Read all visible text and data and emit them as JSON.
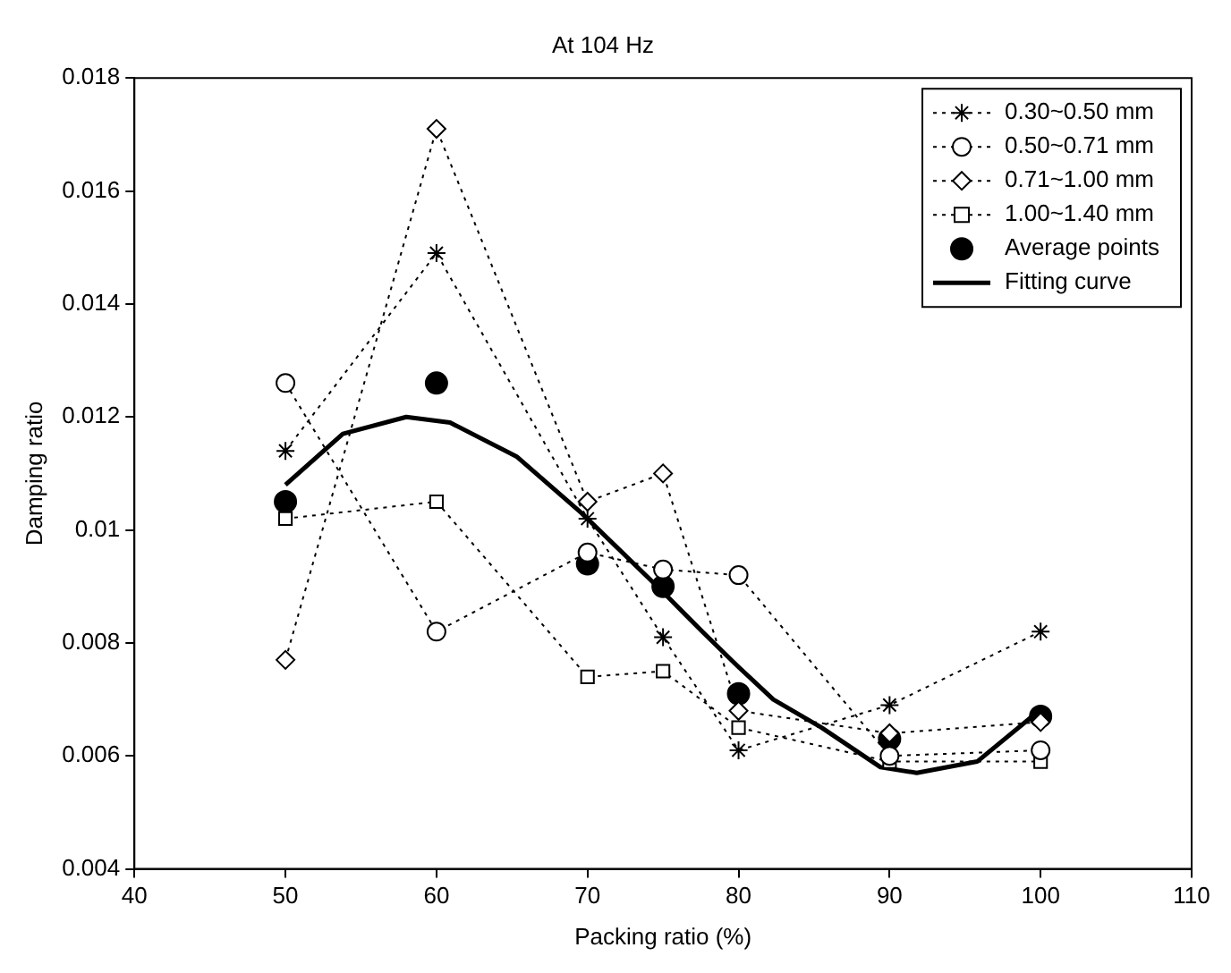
{
  "chart_data": {
    "type": "line",
    "title": "At 104 Hz",
    "xlabel": "Packing ratio (%)",
    "ylabel": "Damping ratio",
    "x": [
      50,
      60,
      70,
      75,
      80,
      90,
      100
    ],
    "series": [
      {
        "name": "0.30~0.50 mm",
        "color": "#000000",
        "marker": "cross",
        "line_style": "dotted",
        "values": [
          0.0114,
          0.0149,
          0.0102,
          0.0081,
          0.0061,
          0.0069,
          0.0082
        ]
      },
      {
        "name": "0.50~0.71 mm",
        "color": "#000000",
        "marker": "circle",
        "line_style": "dotted",
        "values": [
          0.0126,
          0.0082,
          0.0096,
          0.0093,
          0.0092,
          0.006,
          0.0061
        ]
      },
      {
        "name": "0.71~1.00 mm",
        "color": "#000000",
        "marker": "diamond",
        "line_style": "dotted",
        "values": [
          0.0077,
          0.0171,
          0.0105,
          0.011,
          0.0068,
          0.0064,
          0.0066
        ]
      },
      {
        "name": "1.00~1.40 mm",
        "color": "#000000",
        "marker": "square",
        "line_style": "dotted",
        "values": [
          0.0102,
          0.0105,
          0.0074,
          0.0075,
          0.0065,
          0.0059,
          0.0059
        ]
      },
      {
        "name": "Average points",
        "type": "scatter",
        "color": "#000000",
        "marker": "circle",
        "values": [
          0.0105,
          0.0126,
          0.0094,
          0.009,
          0.0071,
          0.0063,
          0.0067
        ]
      },
      {
        "name": "Fitting curve",
        "type": "line",
        "color": "#000000",
        "marker": "none",
        "line_style": "solid",
        "x": [
          50,
          53.8,
          58,
          60.9,
          65.3,
          69.6,
          75,
          77.6,
          79.9,
          82.3,
          85.5,
          89.4,
          91.8,
          95.8,
          99.9
        ],
        "values": [
          0.0108,
          0.0117,
          0.012,
          0.0119,
          0.0113,
          0.0103,
          0.0089,
          0.0082,
          0.0076,
          0.007,
          0.0065,
          0.0058,
          0.0057,
          0.0059,
          0.0068
        ]
      }
    ],
    "xlim": [
      40,
      110
    ],
    "xticks": [
      40,
      50,
      60,
      70,
      80,
      90,
      100,
      110
    ],
    "ylim": [
      0.004,
      0.018
    ],
    "yticks": [
      0.004,
      0.006,
      0.008,
      0.01,
      0.012,
      0.014,
      0.016,
      0.018
    ],
    "grid": false,
    "legend": "top right"
  }
}
